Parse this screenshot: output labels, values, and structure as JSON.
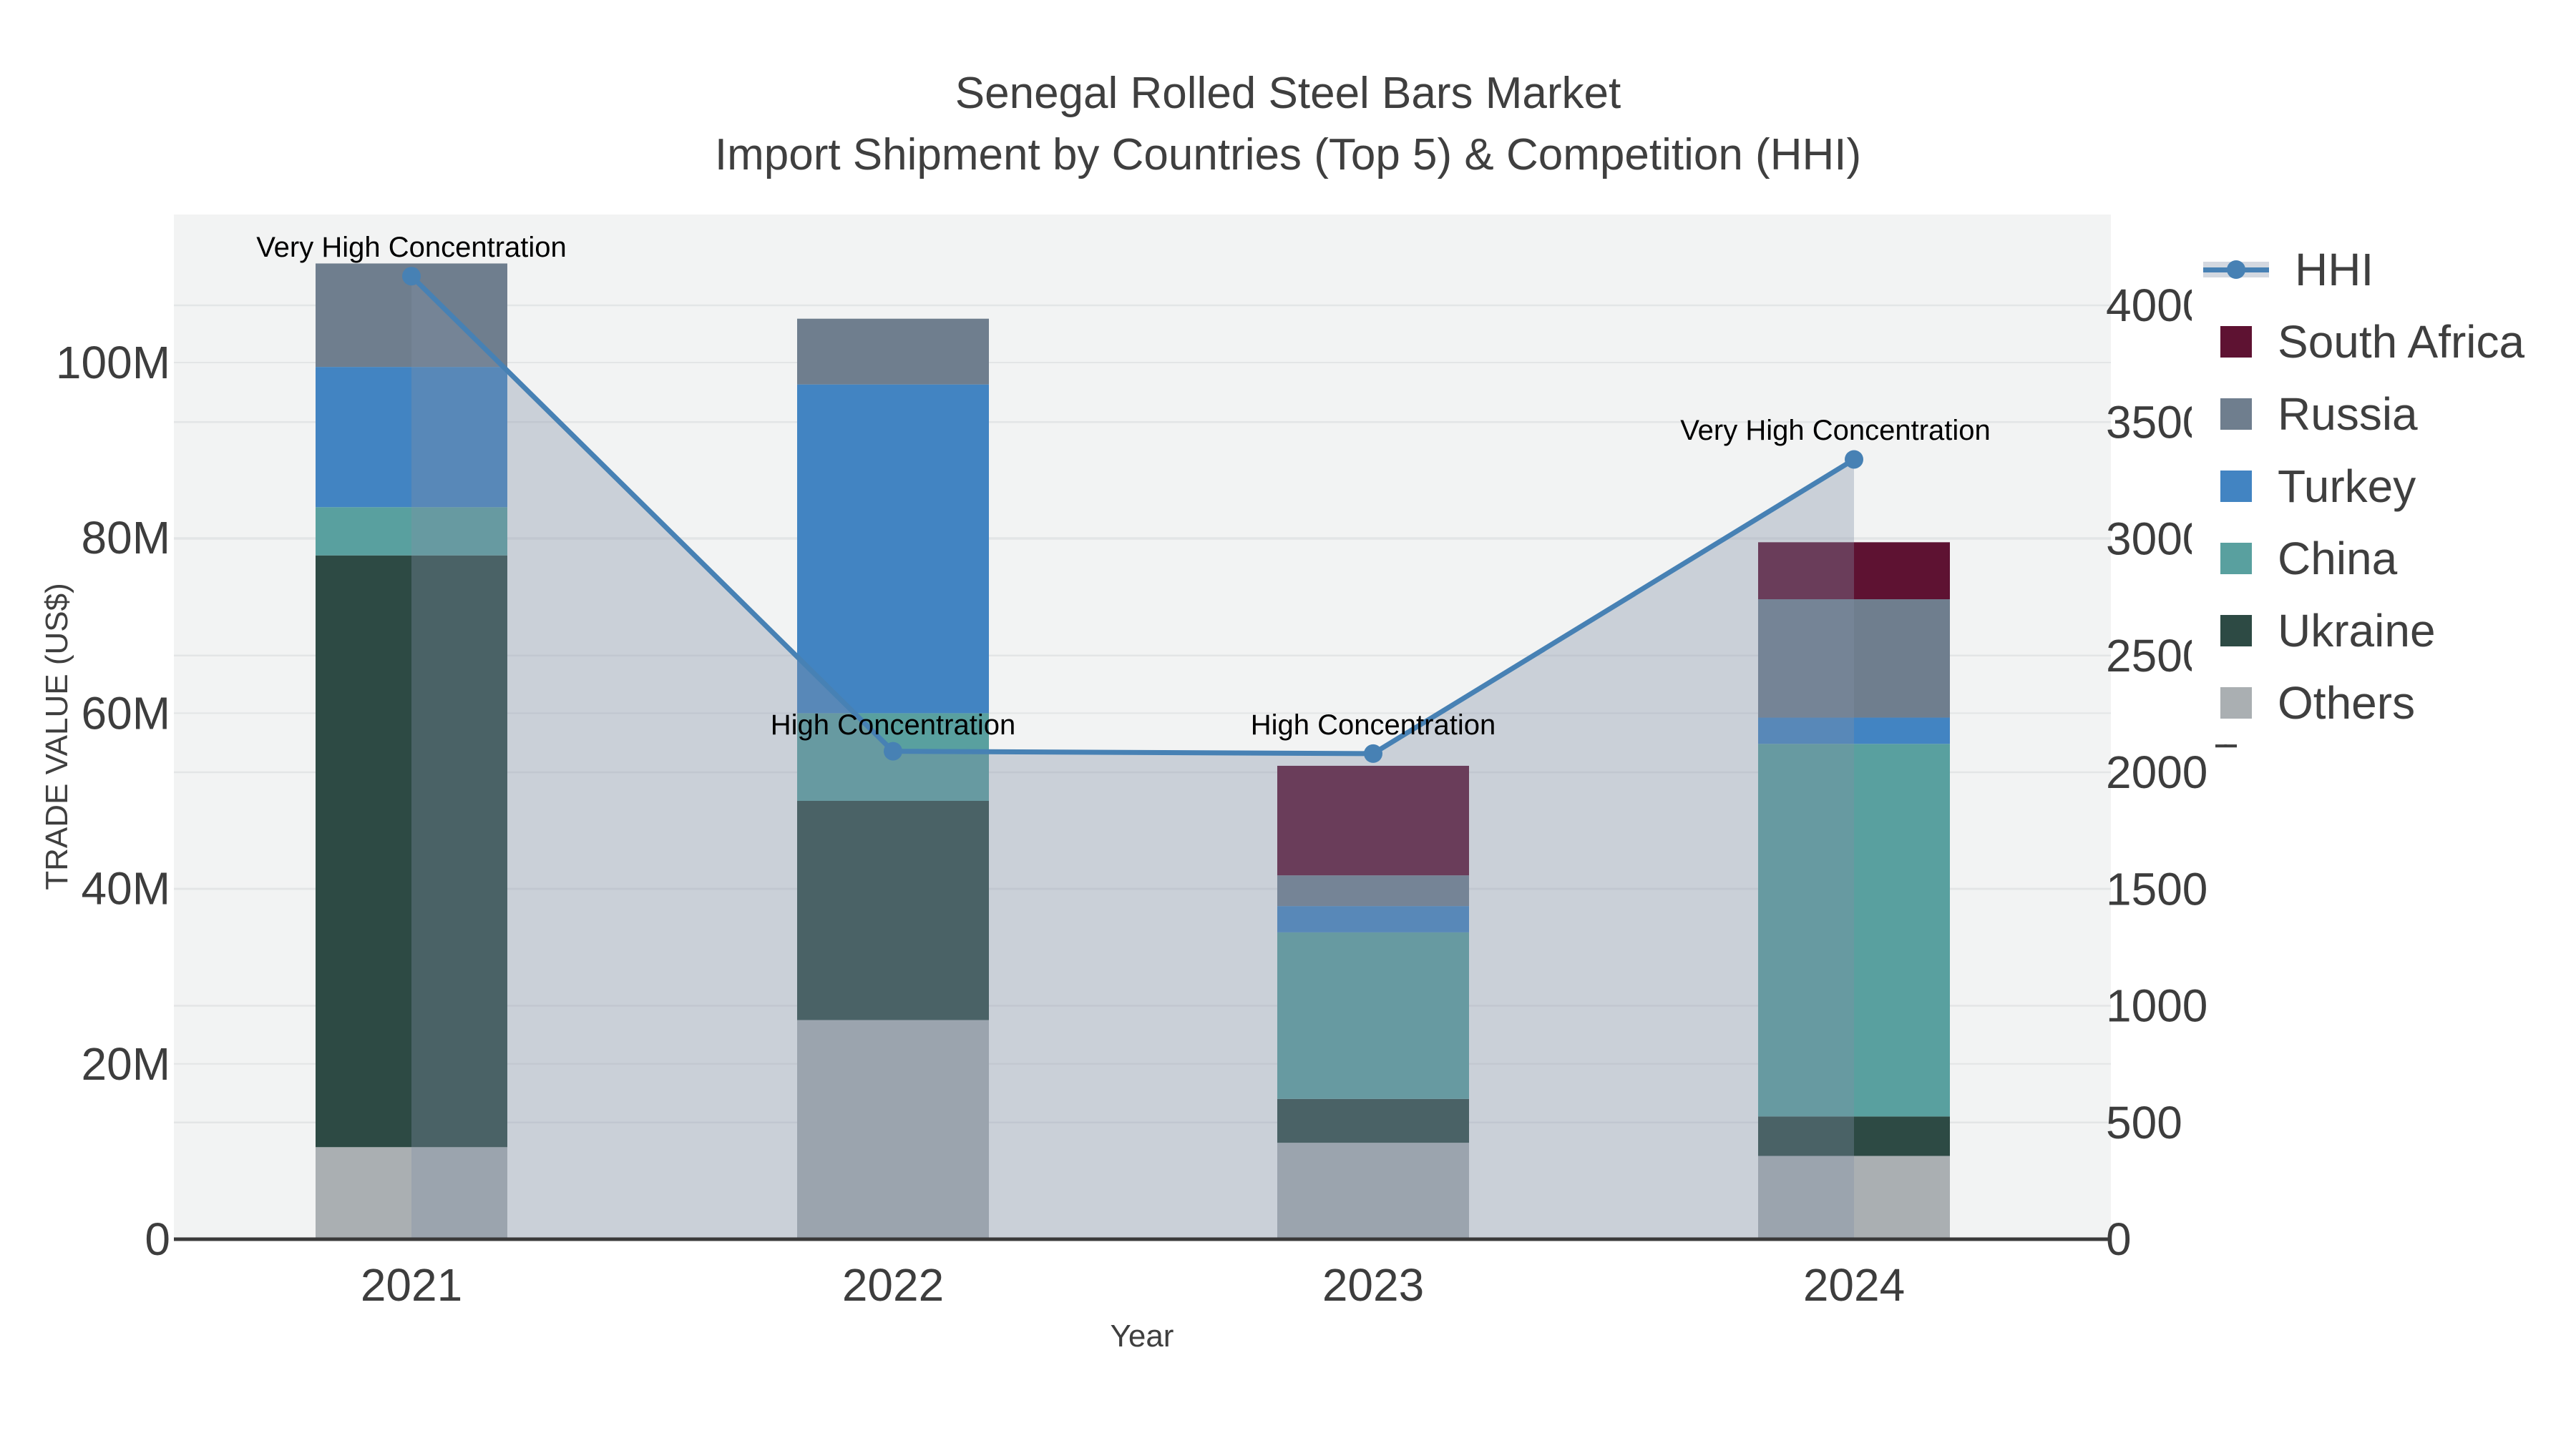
{
  "title": {
    "line1": "Senegal Rolled Steel Bars Market",
    "line2": "Import Shipment by Countries (Top 5) & Competition (HHI)"
  },
  "axes": {
    "x_label": "Year",
    "y_left_label": "TRADE VALUE (US$)",
    "y_right_label": "HHI",
    "y_left_tick_values": [
      0,
      20,
      40,
      60,
      80,
      100
    ],
    "y_left_tick_labels": [
      "0",
      "20M",
      "40M",
      "60M",
      "80M",
      "100M"
    ],
    "y_right_tick_values": [
      0,
      500,
      1000,
      1500,
      2000,
      2500,
      3000,
      3500,
      4000
    ],
    "y_right_tick_labels": [
      "0",
      "500",
      "1000",
      "1500",
      "2000",
      "2500",
      "3000",
      "3500",
      "4000"
    ]
  },
  "chart_data": {
    "type": "bar+line combo (stacked bars on left axis, HHI line with shaded area on right axis)",
    "categories": [
      "2021",
      "2022",
      "2023",
      "2024"
    ],
    "bar_unit": "Trade value, millions US$",
    "series": [
      {
        "name": "Others",
        "color": "#aaafb2",
        "values": [
          10.5,
          25.0,
          11.0,
          9.5
        ]
      },
      {
        "name": "Ukraine",
        "color": "#2d4a44",
        "values": [
          67.5,
          25.0,
          5.0,
          4.5
        ]
      },
      {
        "name": "China",
        "color": "#59a09f",
        "values": [
          5.5,
          10.0,
          19.0,
          42.5
        ]
      },
      {
        "name": "Turkey",
        "color": "#4284c2",
        "values": [
          16.0,
          37.5,
          3.0,
          3.0
        ]
      },
      {
        "name": "Russia",
        "color": "#6f7e8e",
        "values": [
          11.8,
          7.5,
          3.5,
          13.5
        ]
      },
      {
        "name": "South Africa",
        "color": "#5e1232",
        "values": [
          0,
          0,
          12.5,
          6.5
        ]
      }
    ],
    "line_series": {
      "name": "HHI",
      "color": "#4781b4",
      "area_fill": "rgba(130,142,165,0.35)",
      "values": [
        4125,
        2090,
        2080,
        3340
      ]
    },
    "annotations": [
      "Very High Concentration",
      "High Concentration",
      "High Concentration",
      "Very High Concentration"
    ],
    "ylim_left": [
      0,
      116.9
    ],
    "ylim_right": [
      0,
      4000
    ],
    "grid": "horizontal gridlines every 500 HHI / 20M on light gray plot background",
    "legend_position": "right, outside plot"
  },
  "legend": {
    "items": [
      {
        "label": "HHI",
        "type": "line",
        "color": "#4781b4"
      },
      {
        "label": "South Africa",
        "type": "swatch",
        "color": "#5e1232"
      },
      {
        "label": "Russia",
        "type": "swatch",
        "color": "#6f7e8e"
      },
      {
        "label": "Turkey",
        "type": "swatch",
        "color": "#4284c2"
      },
      {
        "label": "China",
        "type": "swatch",
        "color": "#59a09f"
      },
      {
        "label": "Ukraine",
        "type": "swatch",
        "color": "#2d4a44"
      },
      {
        "label": "Others",
        "type": "swatch",
        "color": "#aaafb2"
      }
    ]
  },
  "colors": {
    "plot_background": "#f2f3f3",
    "gridline": "#e3e5e6",
    "axis_line": "#3a3a3a",
    "tick_label": "#3d3d3d",
    "annotation_text": "#000000"
  }
}
